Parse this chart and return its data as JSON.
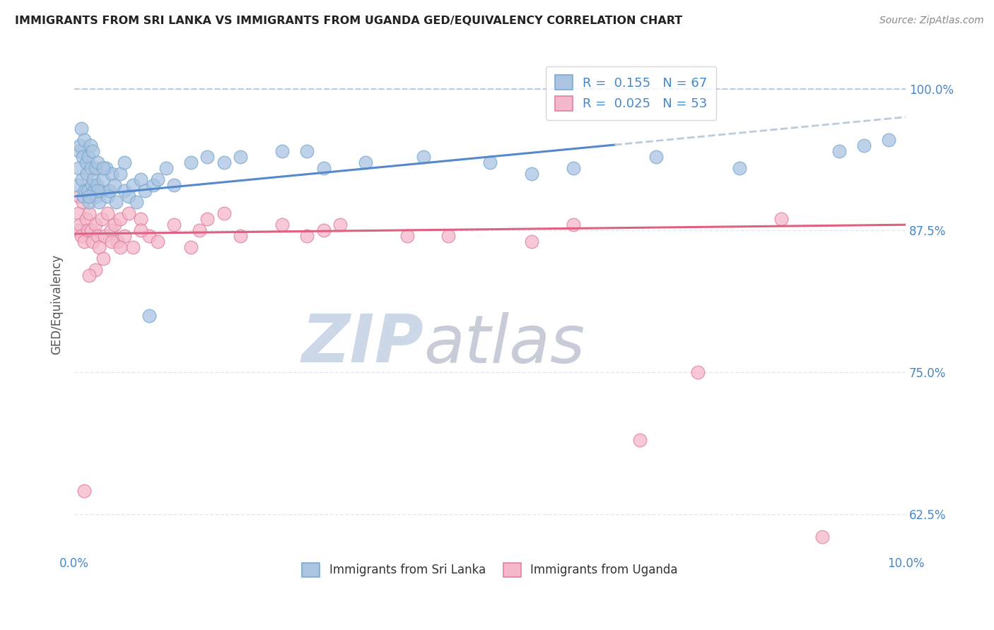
{
  "title": "IMMIGRANTS FROM SRI LANKA VS IMMIGRANTS FROM UGANDA GED/EQUIVALENCY CORRELATION CHART",
  "source": "Source: ZipAtlas.com",
  "ylabel": "GED/Equivalency",
  "xlim": [
    0.0,
    10.0
  ],
  "ylim": [
    59.0,
    103.0
  ],
  "yticks": [
    62.5,
    75.0,
    87.5,
    100.0
  ],
  "ytick_labels": [
    "62.5%",
    "75.0%",
    "87.5%",
    "100.0%"
  ],
  "xticks": [
    0.0,
    2.0,
    4.0,
    6.0,
    8.0,
    10.0
  ],
  "xtick_labels": [
    "0.0%",
    "",
    "",
    "",
    "",
    "10.0%"
  ],
  "sri_lanka_color": "#aac4e2",
  "sri_lanka_edge": "#7aaad0",
  "uganda_color": "#f5b8ca",
  "uganda_edge": "#e080a0",
  "sri_lanka_R": 0.155,
  "sri_lanka_N": 67,
  "uganda_R": 0.025,
  "uganda_N": 53,
  "watermark_zip": "ZIP",
  "watermark_atlas": "atlas",
  "watermark_color_zip": "#c8d8ea",
  "watermark_color_atlas": "#c8c8d8",
  "legend_label_1": "Immigrants from Sri Lanka",
  "legend_label_2": "Immigrants from Uganda",
  "sri_lanka_x": [
    0.04,
    0.05,
    0.06,
    0.07,
    0.08,
    0.09,
    0.1,
    0.11,
    0.12,
    0.13,
    0.14,
    0.15,
    0.16,
    0.17,
    0.18,
    0.19,
    0.2,
    0.21,
    0.22,
    0.23,
    0.24,
    0.25,
    0.26,
    0.27,
    0.28,
    0.3,
    0.32,
    0.35,
    0.38,
    0.4,
    0.42,
    0.45,
    0.48,
    0.5,
    0.55,
    0.6,
    0.65,
    0.7,
    0.75,
    0.8,
    0.85,
    0.9,
    0.95,
    1.0,
    1.1,
    1.2,
    1.4,
    1.6,
    1.8,
    2.0,
    2.5,
    3.0,
    3.5,
    4.2,
    5.0,
    5.5,
    6.0,
    7.0,
    8.0,
    9.2,
    9.5,
    9.8,
    2.8,
    0.6,
    0.35,
    0.28,
    0.18
  ],
  "sri_lanka_y": [
    91.5,
    93.0,
    94.5,
    95.0,
    96.5,
    92.0,
    94.0,
    90.5,
    95.5,
    91.0,
    93.5,
    92.5,
    91.0,
    94.0,
    90.0,
    95.0,
    93.0,
    91.5,
    94.5,
    92.0,
    91.0,
    93.0,
    90.5,
    91.5,
    93.5,
    90.0,
    91.0,
    92.0,
    93.0,
    90.5,
    91.0,
    92.5,
    91.5,
    90.0,
    92.5,
    91.0,
    90.5,
    91.5,
    90.0,
    92.0,
    91.0,
    80.0,
    91.5,
    92.0,
    93.0,
    91.5,
    93.5,
    94.0,
    93.5,
    94.0,
    94.5,
    93.0,
    93.5,
    94.0,
    93.5,
    92.5,
    93.0,
    94.0,
    93.0,
    94.5,
    95.0,
    95.5,
    94.5,
    93.5,
    93.0,
    91.0,
    90.5
  ],
  "uganda_x": [
    0.04,
    0.05,
    0.06,
    0.07,
    0.08,
    0.1,
    0.12,
    0.14,
    0.16,
    0.18,
    0.2,
    0.22,
    0.25,
    0.28,
    0.3,
    0.33,
    0.36,
    0.4,
    0.44,
    0.48,
    0.52,
    0.55,
    0.6,
    0.65,
    0.7,
    0.8,
    0.9,
    1.0,
    1.2,
    1.5,
    1.8,
    2.0,
    2.5,
    3.0,
    4.0,
    5.5,
    6.0,
    7.5,
    8.5,
    1.4,
    0.25,
    0.18,
    0.35,
    0.45,
    2.8,
    3.2,
    0.8,
    1.6,
    0.55,
    4.5,
    6.8,
    9.0,
    0.12
  ],
  "uganda_y": [
    87.5,
    89.0,
    90.5,
    88.0,
    87.0,
    90.0,
    86.5,
    88.5,
    87.5,
    89.0,
    87.5,
    86.5,
    88.0,
    87.0,
    86.0,
    88.5,
    87.0,
    89.0,
    87.5,
    88.0,
    86.5,
    88.5,
    87.0,
    89.0,
    86.0,
    88.5,
    87.0,
    86.5,
    88.0,
    87.5,
    89.0,
    87.0,
    88.0,
    87.5,
    87.0,
    86.5,
    88.0,
    75.0,
    88.5,
    86.0,
    84.0,
    83.5,
    85.0,
    86.5,
    87.0,
    88.0,
    87.5,
    88.5,
    86.0,
    87.0,
    69.0,
    60.5,
    64.5
  ],
  "reg_sl_x0": 0.0,
  "reg_sl_y0": 90.5,
  "reg_sl_x1": 10.0,
  "reg_sl_y1": 97.5,
  "reg_sl_solid_end": 6.5,
  "reg_ug_x0": 0.0,
  "reg_ug_y0": 87.2,
  "reg_ug_x1": 10.0,
  "reg_ug_y1": 88.0,
  "title_color": "#222222",
  "axis_color": "#4488cc",
  "reg_line_sri_lanka_color": "#5588cc",
  "reg_line_uganda_color": "#e06080",
  "dashed_top_color": "#bbccdd",
  "background_color": "#ffffff"
}
